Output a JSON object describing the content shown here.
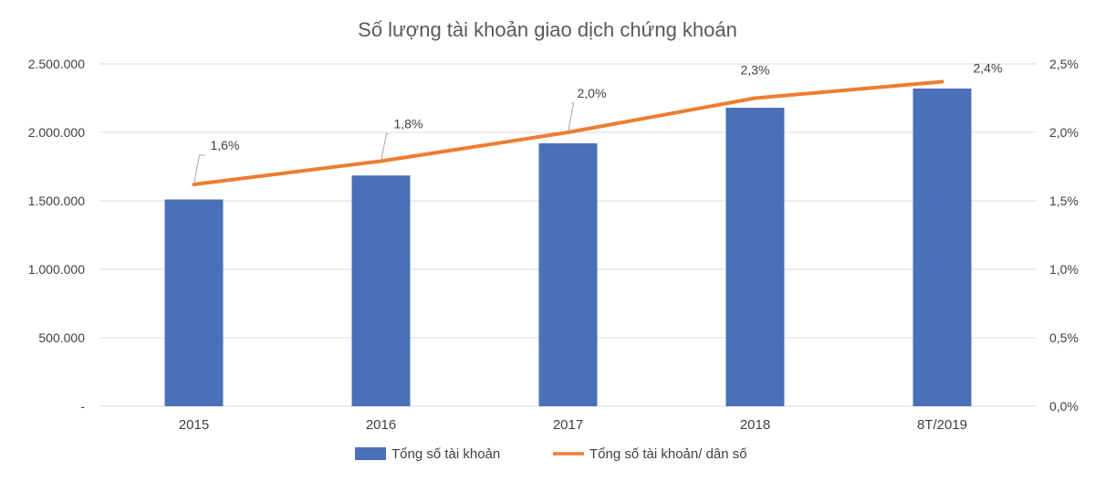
{
  "chart_data": {
    "type": "bar",
    "title": "Số lượng tài khoản giao dịch chứng khoán",
    "categories": [
      "2015",
      "2016",
      "2017",
      "2018",
      "8T/2019"
    ],
    "series": [
      {
        "name": "Tổng số tài khoản",
        "type": "bar",
        "axis": "left",
        "color": "#4a70b8",
        "values": [
          1510000,
          1685000,
          1920000,
          2180000,
          2320000
        ]
      },
      {
        "name": "Tổng số tài khoản/ dân số",
        "type": "line",
        "axis": "right",
        "color": "#ed7d31",
        "values": [
          1.62,
          1.79,
          2.0,
          2.25,
          2.37
        ],
        "data_labels": [
          "1,6%",
          "1,8%",
          "2,0%",
          "2,3%",
          "2,4%"
        ]
      }
    ],
    "y_left": {
      "ylim": [
        0,
        2500000
      ],
      "tick_labels": [
        "-",
        "500.000",
        "1.000.000",
        "1.500.000",
        "2.000.000",
        "2.500.000"
      ]
    },
    "y_right": {
      "ylim": [
        0,
        2.5
      ],
      "tick_labels": [
        "0,0%",
        "0,5%",
        "1,0%",
        "1,5%",
        "2,0%",
        "2,5%"
      ]
    },
    "grid": true,
    "legend": "bottom"
  }
}
